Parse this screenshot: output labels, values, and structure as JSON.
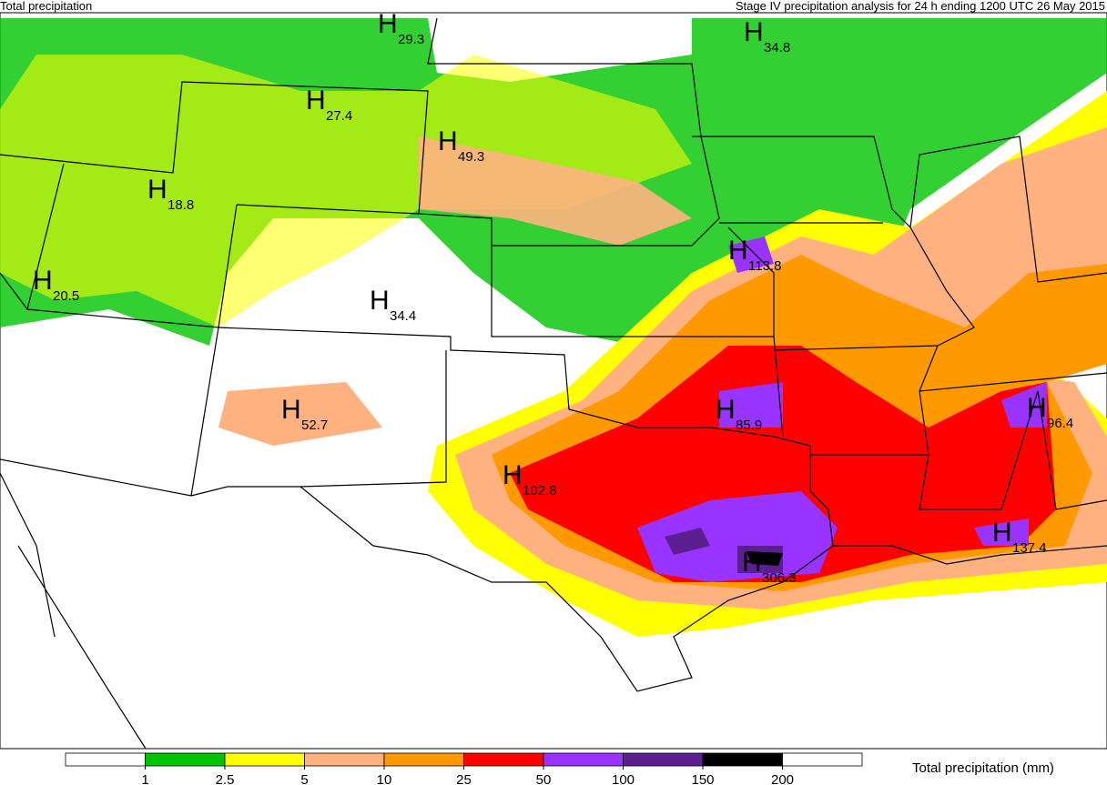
{
  "header": {
    "left": "Total precipitation",
    "right": "Stage IV precipitation analysis for 24 h ending 1200 UTC 26 May 2015"
  },
  "maxima": [
    {
      "marker": "H",
      "value": 29.3
    },
    {
      "marker": "H",
      "value": 34.8
    },
    {
      "marker": "H",
      "value": 27.4
    },
    {
      "marker": "H",
      "value": 49.3
    },
    {
      "marker": "H",
      "value": 18.8
    },
    {
      "marker": "H",
      "value": 20.5
    },
    {
      "marker": "H",
      "value": 34.4
    },
    {
      "marker": "H",
      "value": 113.8
    },
    {
      "marker": "H",
      "value": 85.9
    },
    {
      "marker": "H",
      "value": 96.4
    },
    {
      "marker": "H",
      "value": 52.7
    },
    {
      "marker": "H",
      "value": 102.8
    },
    {
      "marker": "H",
      "value": 306.3
    },
    {
      "marker": "H",
      "value": 137.4
    }
  ],
  "colorbar": {
    "label": "Total precipitation (mm)",
    "colors": [
      "#ffffff",
      "#00c400",
      "#ffff00",
      "#ffb27f",
      "#ff9900",
      "#ff0000",
      "#9933ff",
      "#5c1f8f",
      "#000000",
      "#ffffff"
    ],
    "ticks": [
      1,
      2.5,
      5,
      10,
      25,
      50,
      100,
      150,
      200
    ]
  }
}
